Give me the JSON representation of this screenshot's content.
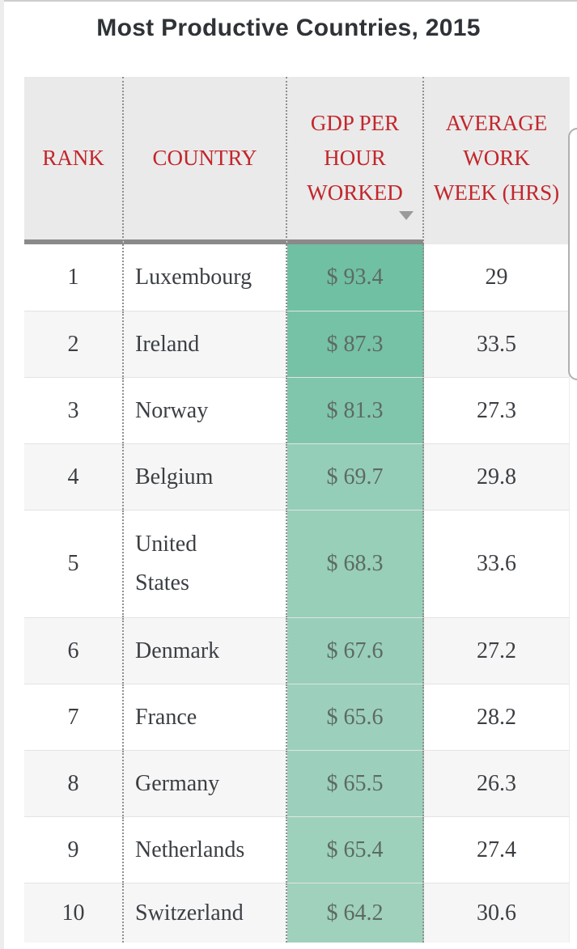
{
  "page": {
    "title": "Most Productive Countries, 2015"
  },
  "table": {
    "columns": [
      {
        "id": "rank",
        "label": "RANK",
        "sortable": true
      },
      {
        "id": "country",
        "label": "COUNTRY",
        "sortable": true
      },
      {
        "id": "gdp",
        "label": "GDP PER HOUR WORKED",
        "sortable": true,
        "sort": "desc",
        "sort_icon": "triangle-down"
      },
      {
        "id": "week",
        "label": "AVERAGE WORK WEEK (HRS)",
        "sortable": true
      }
    ],
    "rows": [
      {
        "rank": "1",
        "country": "Luxembourg",
        "gdp": "$ 93.4",
        "week": "29",
        "gdp_bg": "#70c0a4"
      },
      {
        "rank": "2",
        "country": "Ireland",
        "gdp": "$ 87.3",
        "week": "33.5",
        "gdp_bg": "#76c2a7"
      },
      {
        "rank": "3",
        "country": "Norway",
        "gdp": "$ 81.3",
        "week": "27.3",
        "gdp_bg": "#80c6ad"
      },
      {
        "rank": "4",
        "country": "Belgium",
        "gdp": "$ 69.7",
        "week": "29.8",
        "gdp_bg": "#95ceb8"
      },
      {
        "rank": "5",
        "country": "United States",
        "gdp": "$ 68.3",
        "week": "33.6",
        "gdp_bg": "#97cfb9"
      },
      {
        "rank": "6",
        "country": "Denmark",
        "gdp": "$ 67.6",
        "week": "27.2",
        "gdp_bg": "#99cfba"
      },
      {
        "rank": "7",
        "country": "France",
        "gdp": "$ 65.6",
        "week": "28.2",
        "gdp_bg": "#9cd0bc"
      },
      {
        "rank": "8",
        "country": "Germany",
        "gdp": "$ 65.5",
        "week": "26.3",
        "gdp_bg": "#9cd0bc"
      },
      {
        "rank": "9",
        "country": "Netherlands",
        "gdp": "$ 65.4",
        "week": "27.4",
        "gdp_bg": "#9dd1bc"
      },
      {
        "rank": "10",
        "country": "Switzerland",
        "gdp": "$ 64.2",
        "week": "30.6",
        "gdp_bg": "#9fd1bd"
      }
    ]
  },
  "chart_data": {
    "type": "table",
    "title": "Most Productive Countries, 2015",
    "columns": [
      "Rank",
      "Country",
      "GDP per hour worked (USD)",
      "Average work week (hrs)"
    ],
    "rows": [
      [
        1,
        "Luxembourg",
        93.4,
        29.0
      ],
      [
        2,
        "Ireland",
        87.3,
        33.5
      ],
      [
        3,
        "Norway",
        81.3,
        27.3
      ],
      [
        4,
        "Belgium",
        69.7,
        29.8
      ],
      [
        5,
        "United States",
        68.3,
        33.6
      ],
      [
        6,
        "Denmark",
        67.6,
        27.2
      ],
      [
        7,
        "France",
        65.6,
        28.2
      ],
      [
        8,
        "Germany",
        65.5,
        26.3
      ],
      [
        9,
        "Netherlands",
        65.4,
        27.4
      ],
      [
        10,
        "Switzerland",
        64.2,
        30.6
      ]
    ],
    "sort": {
      "column": "GDP per hour worked (USD)",
      "direction": "desc"
    },
    "cell_shading": {
      "column": "GDP per hour worked (USD)",
      "style": "green color scale, darker = higher value",
      "color_max": "#70c0a4",
      "color_min": "#9fd1bd"
    }
  },
  "colors": {
    "header_text": "#c2262c",
    "header_bg": "#eaeaea",
    "header_bottom_bar": "#8a8a8a",
    "body_text": "#3b3f44",
    "gdp_value_text": "#5d6a63",
    "alt_row_bg": "#f6f6f6",
    "teal_max": "#70c0a4",
    "teal_min": "#9fd1bd"
  },
  "scrollbar": {
    "present": true
  }
}
